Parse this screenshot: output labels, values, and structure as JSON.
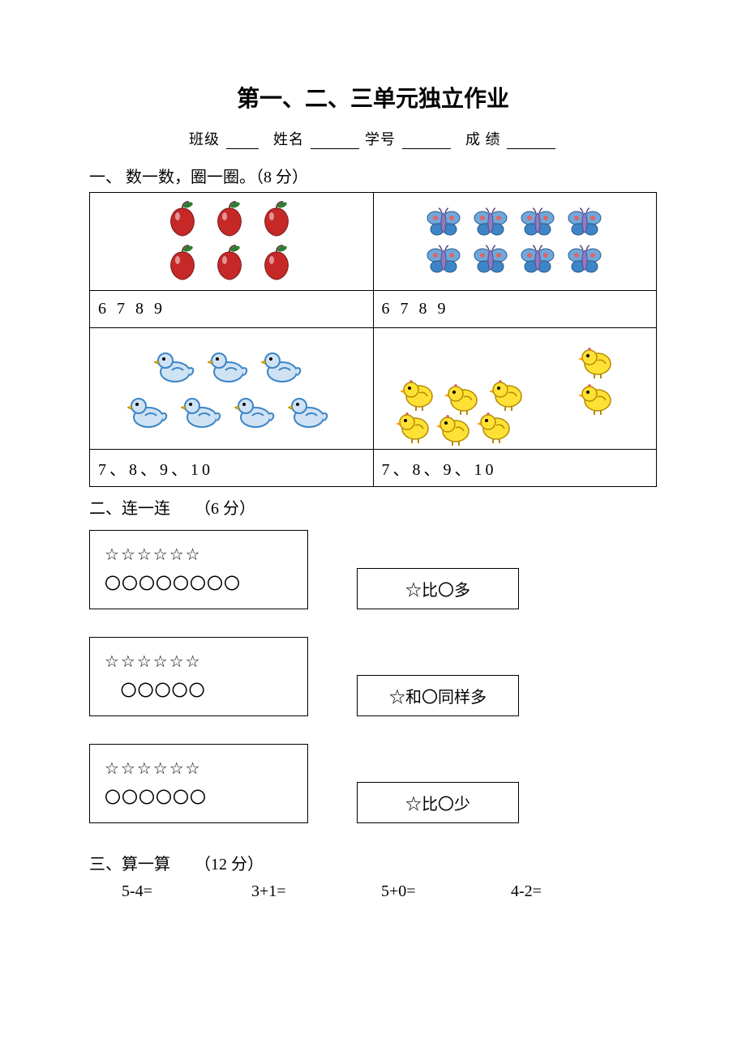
{
  "title": "第一、二、三单元独立作业",
  "header": {
    "class_label": "班级",
    "name_label": "姓名",
    "id_label": "学号",
    "score_label": "成 绩"
  },
  "q1": {
    "heading": "一、 数一数，圈一圈。（8 分）",
    "cells": [
      {
        "icon": "apple",
        "count": 6,
        "layout": "rows",
        "rows": [
          3,
          3
        ],
        "answers": "6 7 8 9"
      },
      {
        "icon": "butterfly",
        "count": 8,
        "layout": "rows",
        "rows": [
          4,
          4
        ],
        "answers": "6 7 8 9"
      },
      {
        "icon": "duck",
        "count": 7,
        "layout": "rows",
        "rows": [
          3,
          4
        ],
        "answers": "7、8、9、10"
      },
      {
        "icon": "chick",
        "count": 8,
        "layout": "free",
        "answers": "7、8、9、10"
      }
    ]
  },
  "q2": {
    "heading": "二、连一连　　（6 分）",
    "rows": [
      {
        "stars": 6,
        "circles": 8,
        "label": "☆比〇多",
        "circle_indent": false
      },
      {
        "stars": 6,
        "circles": 5,
        "label": "☆和〇同样多",
        "circle_indent": true
      },
      {
        "stars": 6,
        "circles": 6,
        "label": "☆比〇少",
        "circle_indent": false
      }
    ],
    "star_char": "☆",
    "circle_char": "〇"
  },
  "q3": {
    "heading": "三、算一算　　（12 分）",
    "items": [
      "5-4=",
      "3+1=",
      "5+0=",
      "4-2="
    ]
  },
  "colors": {
    "apple_body": "#c62828",
    "apple_leaf": "#2e7d32",
    "apple_stem": "#5d4037",
    "butterfly_wing": "#6fa8dc",
    "butterfly_wing2": "#3d85c6",
    "butterfly_spot": "#e06666",
    "butterfly_body": "#8e7cc3",
    "duck_body": "#cfe2f3",
    "duck_outline": "#3d85c6",
    "duck_beak": "#f1c232",
    "chick_body": "#ffe135",
    "chick_outline": "#b58b00",
    "chick_beak": "#ff9900",
    "chick_comb": "#e06666"
  }
}
